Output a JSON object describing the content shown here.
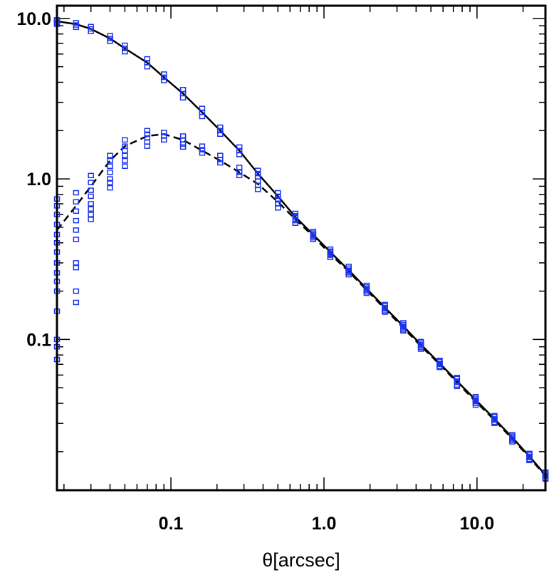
{
  "chart_data": {
    "type": "scatter",
    "title": "",
    "xlabel": "θ[arcsec]",
    "ylabel": "",
    "xscale": "log",
    "yscale": "log",
    "xlim": [
      0.018,
      28
    ],
    "ylim": [
      0.0115,
      12
    ],
    "x_tick_labels": [
      {
        "value": 0.1,
        "label": "0.1"
      },
      {
        "value": 1.0,
        "label": "1.0"
      },
      {
        "value": 10.0,
        "label": "10.0"
      }
    ],
    "y_tick_labels": [
      {
        "value": 0.1,
        "label": "0.1"
      },
      {
        "value": 1.0,
        "label": "1.0"
      },
      {
        "value": 10.0,
        "label": "10.0"
      }
    ],
    "grid": false,
    "legend": "none",
    "colors": {
      "markers": "#1a33ee",
      "lines": "#000000",
      "frame": "#000000"
    },
    "series": [
      {
        "line_style": "solid",
        "curve": [
          [
            0.018,
            9.6
          ],
          [
            0.024,
            9.2
          ],
          [
            0.03,
            8.6
          ],
          [
            0.04,
            7.5
          ],
          [
            0.05,
            6.5
          ],
          [
            0.07,
            5.3
          ],
          [
            0.09,
            4.3
          ],
          [
            0.12,
            3.4
          ],
          [
            0.16,
            2.6
          ],
          [
            0.21,
            2.0
          ],
          [
            0.28,
            1.5
          ],
          [
            0.37,
            1.08
          ],
          [
            0.5,
            0.78
          ],
          [
            0.65,
            0.58
          ],
          [
            0.85,
            0.45
          ],
          [
            1.1,
            0.35
          ],
          [
            1.45,
            0.27
          ],
          [
            1.9,
            0.207
          ],
          [
            2.5,
            0.158
          ],
          [
            3.3,
            0.121
          ],
          [
            4.3,
            0.093
          ],
          [
            5.7,
            0.071
          ],
          [
            7.4,
            0.055
          ],
          [
            9.8,
            0.042
          ],
          [
            13,
            0.032
          ],
          [
            17,
            0.0245
          ],
          [
            22,
            0.0187
          ],
          [
            28,
            0.0143
          ]
        ],
        "points": [
          [
            0.018,
            9.8
          ],
          [
            0.018,
            9.6
          ],
          [
            0.018,
            9.4
          ],
          [
            0.018,
            9.2
          ],
          [
            0.024,
            9.4
          ],
          [
            0.024,
            9.1
          ],
          [
            0.024,
            8.8
          ],
          [
            0.03,
            8.9
          ],
          [
            0.03,
            8.6
          ],
          [
            0.03,
            8.3
          ],
          [
            0.04,
            7.8
          ],
          [
            0.04,
            7.5
          ],
          [
            0.04,
            7.2
          ],
          [
            0.05,
            6.8
          ],
          [
            0.05,
            6.5
          ],
          [
            0.05,
            6.2
          ],
          [
            0.07,
            5.6
          ],
          [
            0.07,
            5.3
          ],
          [
            0.07,
            5.0
          ],
          [
            0.09,
            4.5
          ],
          [
            0.09,
            4.3
          ],
          [
            0.09,
            4.1
          ],
          [
            0.12,
            3.6
          ],
          [
            0.12,
            3.4
          ],
          [
            0.12,
            3.2
          ],
          [
            0.16,
            2.75
          ],
          [
            0.16,
            2.6
          ],
          [
            0.16,
            2.45
          ],
          [
            0.21,
            2.1
          ],
          [
            0.21,
            2.0
          ],
          [
            0.21,
            1.9
          ],
          [
            0.28,
            1.58
          ],
          [
            0.28,
            1.5
          ],
          [
            0.28,
            1.42
          ],
          [
            0.37,
            1.13
          ],
          [
            0.37,
            1.08
          ],
          [
            0.37,
            1.03
          ],
          [
            0.5,
            0.82
          ],
          [
            0.5,
            0.78
          ],
          [
            0.5,
            0.74
          ],
          [
            0.65,
            0.61
          ],
          [
            0.65,
            0.58
          ],
          [
            0.65,
            0.55
          ],
          [
            0.85,
            0.47
          ],
          [
            0.85,
            0.45
          ],
          [
            0.85,
            0.43
          ],
          [
            1.1,
            0.365
          ],
          [
            1.1,
            0.35
          ],
          [
            1.1,
            0.335
          ],
          [
            1.45,
            0.285
          ],
          [
            1.45,
            0.27
          ],
          [
            1.45,
            0.26
          ],
          [
            1.9,
            0.217
          ],
          [
            1.9,
            0.207
          ],
          [
            1.9,
            0.198
          ],
          [
            2.5,
            0.165
          ],
          [
            2.5,
            0.158
          ],
          [
            2.5,
            0.151
          ],
          [
            3.3,
            0.127
          ],
          [
            3.3,
            0.121
          ],
          [
            3.3,
            0.115
          ],
          [
            4.3,
            0.097
          ],
          [
            4.3,
            0.093
          ],
          [
            4.3,
            0.089
          ],
          [
            5.7,
            0.074
          ],
          [
            5.7,
            0.071
          ],
          [
            5.7,
            0.068
          ],
          [
            7.4,
            0.058
          ],
          [
            7.4,
            0.055
          ],
          [
            7.4,
            0.052
          ],
          [
            9.8,
            0.044
          ],
          [
            9.8,
            0.042
          ],
          [
            9.8,
            0.04
          ],
          [
            13,
            0.0335
          ],
          [
            13,
            0.032
          ],
          [
            13,
            0.0305
          ],
          [
            17,
            0.0255
          ],
          [
            17,
            0.0245
          ],
          [
            17,
            0.0235
          ],
          [
            22,
            0.0195
          ],
          [
            22,
            0.0187
          ],
          [
            22,
            0.0179
          ],
          [
            28,
            0.0149
          ],
          [
            28,
            0.0143
          ],
          [
            28,
            0.0137
          ]
        ]
      },
      {
        "line_style": "dashed",
        "curve": [
          [
            0.018,
            0.48
          ],
          [
            0.024,
            0.68
          ],
          [
            0.03,
            0.9
          ],
          [
            0.04,
            1.3
          ],
          [
            0.05,
            1.6
          ],
          [
            0.07,
            1.85
          ],
          [
            0.09,
            1.9
          ],
          [
            0.12,
            1.75
          ],
          [
            0.16,
            1.5
          ],
          [
            0.21,
            1.3
          ],
          [
            0.28,
            1.1
          ],
          [
            0.37,
            0.93
          ],
          [
            0.5,
            0.72
          ],
          [
            0.65,
            0.56
          ],
          [
            0.85,
            0.44
          ],
          [
            1.1,
            0.34
          ],
          [
            1.45,
            0.265
          ],
          [
            1.9,
            0.203
          ],
          [
            2.5,
            0.155
          ],
          [
            3.3,
            0.118
          ],
          [
            4.3,
            0.091
          ],
          [
            5.7,
            0.07
          ],
          [
            7.4,
            0.054
          ],
          [
            9.8,
            0.041
          ],
          [
            13,
            0.0315
          ],
          [
            17,
            0.024
          ],
          [
            22,
            0.0184
          ],
          [
            28,
            0.0141
          ]
        ],
        "points": [
          [
            0.018,
            0.75
          ],
          [
            0.018,
            0.68
          ],
          [
            0.018,
            0.6
          ],
          [
            0.018,
            0.52
          ],
          [
            0.018,
            0.45
          ],
          [
            0.018,
            0.4
          ],
          [
            0.018,
            0.35
          ],
          [
            0.018,
            0.3
          ],
          [
            0.018,
            0.26
          ],
          [
            0.018,
            0.23
          ],
          [
            0.018,
            0.2
          ],
          [
            0.018,
            0.15
          ],
          [
            0.018,
            0.1
          ],
          [
            0.018,
            0.09
          ],
          [
            0.018,
            0.075
          ],
          [
            0.024,
            0.82
          ],
          [
            0.024,
            0.72
          ],
          [
            0.024,
            0.63
          ],
          [
            0.024,
            0.55
          ],
          [
            0.024,
            0.48
          ],
          [
            0.024,
            0.42
          ],
          [
            0.024,
            0.3
          ],
          [
            0.024,
            0.28
          ],
          [
            0.024,
            0.2
          ],
          [
            0.024,
            0.17
          ],
          [
            0.03,
            1.05
          ],
          [
            0.03,
            0.95
          ],
          [
            0.03,
            0.85
          ],
          [
            0.03,
            0.78
          ],
          [
            0.03,
            0.7
          ],
          [
            0.03,
            0.65
          ],
          [
            0.03,
            0.6
          ],
          [
            0.03,
            0.56
          ],
          [
            0.04,
            1.4
          ],
          [
            0.04,
            1.3
          ],
          [
            0.04,
            1.2
          ],
          [
            0.04,
            1.1
          ],
          [
            0.04,
            1.0
          ],
          [
            0.04,
            0.95
          ],
          [
            0.04,
            0.88
          ],
          [
            0.05,
            1.75
          ],
          [
            0.05,
            1.6
          ],
          [
            0.05,
            1.5
          ],
          [
            0.05,
            1.4
          ],
          [
            0.05,
            1.3
          ],
          [
            0.05,
            1.2
          ],
          [
            0.07,
            2.0
          ],
          [
            0.07,
            1.9
          ],
          [
            0.07,
            1.8
          ],
          [
            0.07,
            1.7
          ],
          [
            0.07,
            1.6
          ],
          [
            0.09,
            1.95
          ],
          [
            0.09,
            1.85
          ],
          [
            0.09,
            1.75
          ],
          [
            0.12,
            1.85
          ],
          [
            0.12,
            1.75
          ],
          [
            0.12,
            1.65
          ],
          [
            0.12,
            1.58
          ],
          [
            0.16,
            1.6
          ],
          [
            0.16,
            1.52
          ],
          [
            0.16,
            1.45
          ],
          [
            0.21,
            1.4
          ],
          [
            0.21,
            1.32
          ],
          [
            0.21,
            1.26
          ],
          [
            0.28,
            1.18
          ],
          [
            0.28,
            1.1
          ],
          [
            0.28,
            1.05
          ],
          [
            0.37,
            0.97
          ],
          [
            0.37,
            0.91
          ],
          [
            0.37,
            0.86
          ],
          [
            0.5,
            0.75
          ],
          [
            0.5,
            0.7
          ],
          [
            0.5,
            0.66
          ],
          [
            0.65,
            0.59
          ],
          [
            0.65,
            0.56
          ],
          [
            0.65,
            0.53
          ],
          [
            0.85,
            0.46
          ],
          [
            0.85,
            0.44
          ],
          [
            0.85,
            0.42
          ],
          [
            1.1,
            0.355
          ],
          [
            1.1,
            0.34
          ],
          [
            1.1,
            0.325
          ],
          [
            1.45,
            0.278
          ],
          [
            1.45,
            0.265
          ],
          [
            1.45,
            0.253
          ],
          [
            1.9,
            0.212
          ],
          [
            1.9,
            0.203
          ],
          [
            1.9,
            0.194
          ],
          [
            2.5,
            0.162
          ],
          [
            2.5,
            0.155
          ],
          [
            2.5,
            0.148
          ],
          [
            3.3,
            0.124
          ],
          [
            3.3,
            0.118
          ],
          [
            3.3,
            0.113
          ],
          [
            4.3,
            0.095
          ],
          [
            4.3,
            0.091
          ],
          [
            4.3,
            0.087
          ],
          [
            5.7,
            0.073
          ],
          [
            5.7,
            0.07
          ],
          [
            5.7,
            0.067
          ],
          [
            7.4,
            0.057
          ],
          [
            7.4,
            0.054
          ],
          [
            7.4,
            0.051
          ],
          [
            9.8,
            0.043
          ],
          [
            9.8,
            0.041
          ],
          [
            9.8,
            0.039
          ],
          [
            13,
            0.033
          ],
          [
            13,
            0.0315
          ],
          [
            13,
            0.03
          ],
          [
            17,
            0.025
          ],
          [
            17,
            0.024
          ],
          [
            17,
            0.023
          ],
          [
            22,
            0.0192
          ],
          [
            22,
            0.0184
          ],
          [
            22,
            0.0176
          ],
          [
            28,
            0.0147
          ],
          [
            28,
            0.0141
          ],
          [
            28,
            0.0135
          ]
        ]
      }
    ]
  }
}
